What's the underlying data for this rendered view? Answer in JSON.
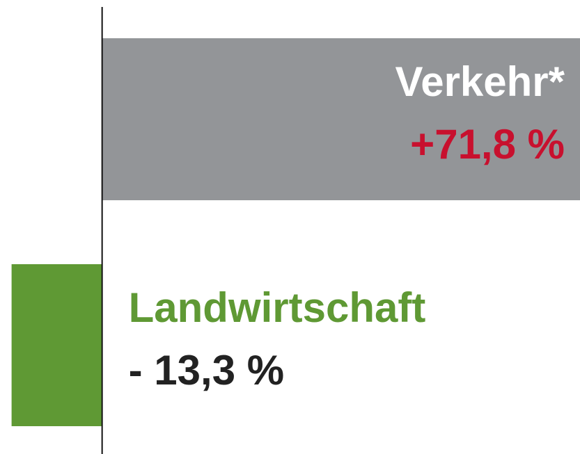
{
  "chart_data": {
    "type": "barh",
    "categories": [
      "Verkehr*",
      "Landwirtschaft"
    ],
    "values": [
      71.8,
      -13.3
    ],
    "value_labels": [
      "+71,8 %",
      "- 13,3 %"
    ],
    "colors": [
      "#939598",
      "#5f9934"
    ],
    "xlim": [
      -15,
      70.2
    ]
  }
}
